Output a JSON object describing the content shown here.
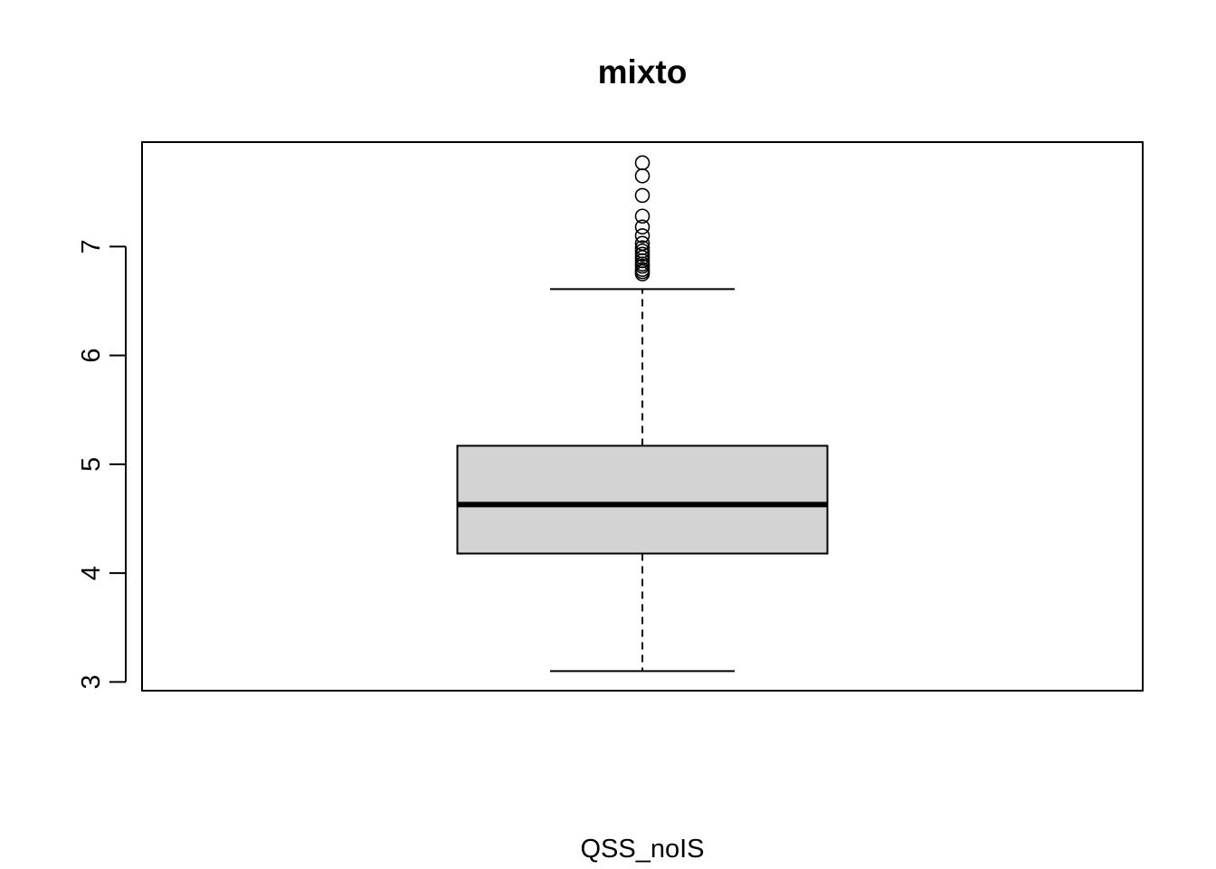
{
  "chart_data": {
    "type": "boxplot",
    "title": "mixto",
    "xlabel": "QSS_noIS",
    "ylabel": "",
    "ylim": [
      2.92,
      7.96
    ],
    "yticks": [
      3,
      4,
      5,
      6,
      7
    ],
    "ytick_labels": [
      "3",
      "4",
      "5",
      "6",
      "7"
    ],
    "grid": false,
    "legend": "none",
    "box": {
      "lower_whisker": 3.1,
      "q1": 4.18,
      "median": 4.63,
      "q3": 5.17,
      "upper_whisker": 6.61,
      "outliers": [
        6.75,
        6.77,
        6.79,
        6.82,
        6.84,
        6.87,
        6.9,
        6.93,
        6.96,
        6.99,
        7.03,
        7.1,
        7.18,
        7.28,
        7.47,
        7.65,
        7.77
      ]
    },
    "colors": {
      "box_fill": "#d3d3d3",
      "stroke": "#000000",
      "background": "#ffffff"
    }
  }
}
